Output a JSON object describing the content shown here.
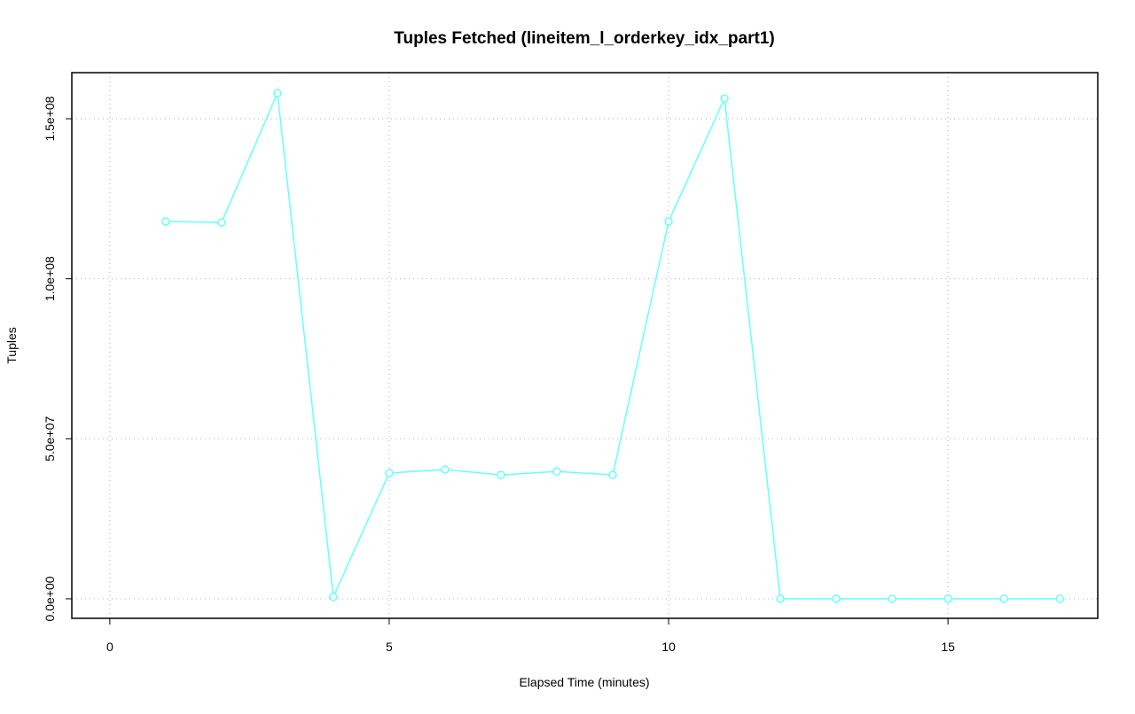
{
  "chart_data": {
    "type": "line",
    "title": "Tuples Fetched (lineitem_l_orderkey_idx_part1)",
    "x_label": "Elapsed Time (minutes)",
    "y_label": "Tuples",
    "x": [
      1,
      2,
      3,
      4,
      5,
      6,
      7,
      8,
      9,
      10,
      11,
      12,
      13,
      14,
      15,
      16,
      17
    ],
    "values": [
      117900000,
      117600000,
      158000000,
      600000,
      39300000,
      40400000,
      38700000,
      39800000,
      38700000,
      117900000,
      156300000,
      0,
      0,
      0,
      0,
      0,
      0
    ],
    "color": "#66ffff",
    "xlim": [
      -0.68,
      17.68
    ],
    "xticks": [
      0,
      5,
      10,
      15
    ],
    "ylim": [
      -6100000,
      164400000
    ],
    "yticks": [
      {
        "value": 0,
        "label": "0.0e+00"
      },
      {
        "value": 50000000,
        "label": "5.0e+07"
      },
      {
        "value": 100000000,
        "label": "1.0e+08"
      },
      {
        "value": 150000000,
        "label": "1.5e+08"
      }
    ],
    "grid": true
  }
}
